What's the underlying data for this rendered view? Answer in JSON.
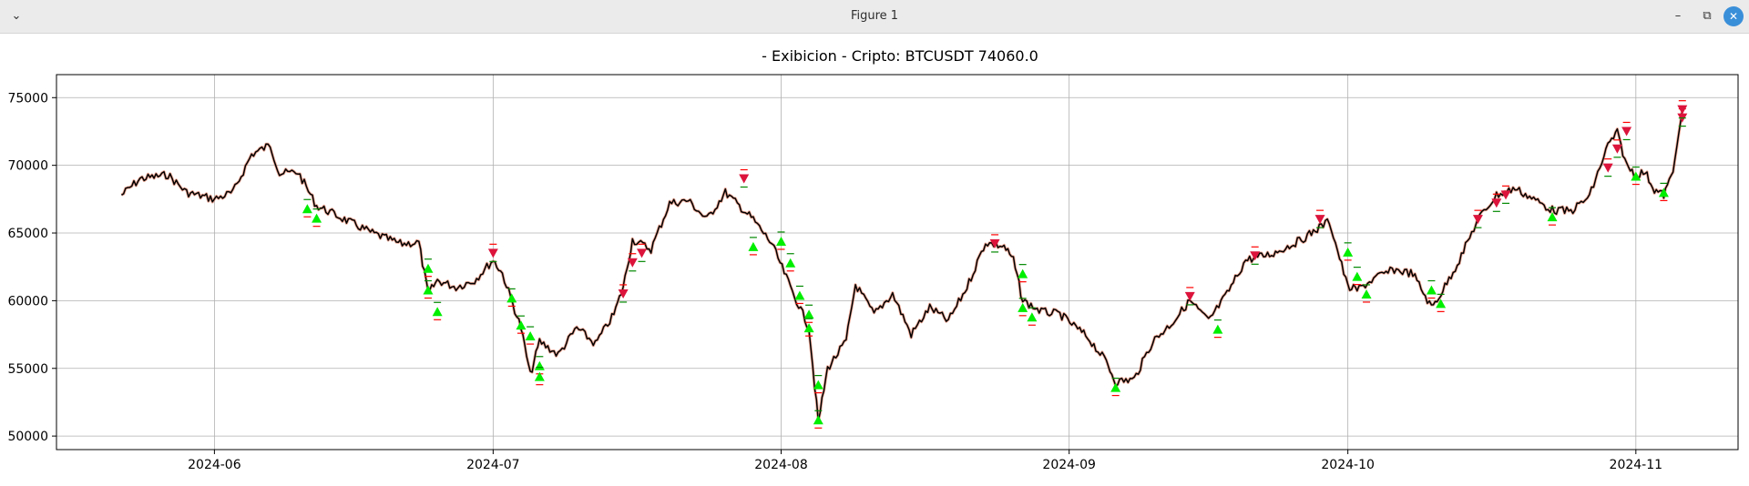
{
  "window": {
    "title": "Figure 1",
    "menu_icon": "chevron-down-icon",
    "minimize_icon": "minimize-icon",
    "maximize_icon": "restore-icon",
    "close_icon": "close-icon",
    "minimize_glyph": "–",
    "maximize_glyph": "⧉",
    "close_glyph": "✕",
    "menu_glyph": "⌄"
  },
  "colors": {
    "price_line": "#000000",
    "price_shadow": "#e06040",
    "buy_marker": "#00ee00",
    "sell_marker": "#dc143c",
    "buy_tick": "#008800",
    "sell_tick": "#ff0000",
    "grid": "#b0b0b0"
  },
  "chart_data": {
    "type": "line",
    "title": "- Exibicion - Cripto: BTCUSDT 74060.0",
    "xlabel": "",
    "ylabel": "",
    "grid": true,
    "x_ticks": [
      "2024-06",
      "2024-07",
      "2024-08",
      "2024-09",
      "2024-10",
      "2024-11"
    ],
    "y_ticks": [
      50000,
      55000,
      60000,
      65000,
      70000,
      75000
    ],
    "xlim": [
      "2024-05-15",
      "2024-11-12"
    ],
    "ylim": [
      49000,
      76700
    ],
    "series": [
      {
        "values_x": [
          "2024-05-22",
          "2024-05-24",
          "2024-05-27",
          "2024-05-29",
          "2024-06-01",
          "2024-06-03",
          "2024-06-05",
          "2024-06-07",
          "2024-06-08",
          "2024-06-10",
          "2024-06-12",
          "2024-06-13",
          "2024-06-15",
          "2024-06-18",
          "2024-06-21",
          "2024-06-23",
          "2024-06-24",
          "2024-06-25",
          "2024-06-27",
          "2024-06-29",
          "2024-07-01",
          "2024-07-02",
          "2024-07-04",
          "2024-07-05",
          "2024-07-06",
          "2024-07-08",
          "2024-07-10",
          "2024-07-12",
          "2024-07-14",
          "2024-07-15",
          "2024-07-16",
          "2024-07-18",
          "2024-07-20",
          "2024-07-22",
          "2024-07-24",
          "2024-07-26",
          "2024-07-29",
          "2024-07-31",
          "2024-08-02",
          "2024-08-04",
          "2024-08-05",
          "2024-08-06",
          "2024-08-08",
          "2024-08-09",
          "2024-08-11",
          "2024-08-13",
          "2024-08-15",
          "2024-08-17",
          "2024-08-19",
          "2024-08-21",
          "2024-08-23",
          "2024-08-25",
          "2024-08-26",
          "2024-08-27",
          "2024-08-29",
          "2024-08-31",
          "2024-09-03",
          "2024-09-05",
          "2024-09-06",
          "2024-09-08",
          "2024-09-10",
          "2024-09-12",
          "2024-09-14",
          "2024-09-16",
          "2024-09-18",
          "2024-09-20",
          "2024-09-23",
          "2024-09-26",
          "2024-09-29",
          "2024-10-01",
          "2024-10-02",
          "2024-10-04",
          "2024-10-06",
          "2024-10-08",
          "2024-10-10",
          "2024-10-11",
          "2024-10-13",
          "2024-10-15",
          "2024-10-17",
          "2024-10-19",
          "2024-10-21",
          "2024-10-23",
          "2024-10-25",
          "2024-10-27",
          "2024-10-29",
          "2024-10-30",
          "2024-10-31",
          "2024-11-01",
          "2024-11-02",
          "2024-11-03",
          "2024-11-04",
          "2024-11-05",
          "2024-11-06"
        ],
        "values_y": [
          67800,
          69000,
          69300,
          68000,
          67500,
          68000,
          70800,
          71500,
          69400,
          69500,
          67000,
          66700,
          66000,
          65000,
          64200,
          64300,
          60500,
          61500,
          61000,
          61500,
          63000,
          62000,
          58000,
          54500,
          57000,
          56000,
          58000,
          56800,
          59000,
          61000,
          64500,
          63800,
          67200,
          67400,
          66000,
          68000,
          66000,
          64200,
          61000,
          58000,
          51000,
          55000,
          57000,
          61200,
          59000,
          60500,
          57500,
          59500,
          58500,
          61000,
          64300,
          64000,
          63000,
          60000,
          59200,
          59000,
          57300,
          55500,
          54000,
          54200,
          57000,
          58300,
          60000,
          58500,
          60500,
          63000,
          63500,
          64500,
          65900,
          61000,
          60800,
          61700,
          62300,
          62000,
          59500,
          60500,
          63000,
          66000,
          67800,
          68300,
          67500,
          66700,
          66600,
          67700,
          71500,
          72400,
          70000,
          69300,
          69500,
          68200,
          67800,
          69500,
          74100
        ]
      }
    ],
    "buy_signals": [
      {
        "x": "2024-06-11",
        "y": 66800
      },
      {
        "x": "2024-06-12",
        "y": 66100
      },
      {
        "x": "2024-06-24",
        "y": 62400
      },
      {
        "x": "2024-06-24",
        "y": 60800
      },
      {
        "x": "2024-06-25",
        "y": 59200
      },
      {
        "x": "2024-07-03",
        "y": 60200
      },
      {
        "x": "2024-07-04",
        "y": 58200
      },
      {
        "x": "2024-07-05",
        "y": 57400
      },
      {
        "x": "2024-07-06",
        "y": 55200
      },
      {
        "x": "2024-07-06",
        "y": 54400
      },
      {
        "x": "2024-07-29",
        "y": 64000
      },
      {
        "x": "2024-08-01",
        "y": 64400
      },
      {
        "x": "2024-08-02",
        "y": 62800
      },
      {
        "x": "2024-08-03",
        "y": 60400
      },
      {
        "x": "2024-08-04",
        "y": 59000
      },
      {
        "x": "2024-08-04",
        "y": 58000
      },
      {
        "x": "2024-08-05",
        "y": 53800
      },
      {
        "x": "2024-08-05",
        "y": 51200
      },
      {
        "x": "2024-08-27",
        "y": 62000
      },
      {
        "x": "2024-08-27",
        "y": 59500
      },
      {
        "x": "2024-08-28",
        "y": 58800
      },
      {
        "x": "2024-09-06",
        "y": 53600
      },
      {
        "x": "2024-09-17",
        "y": 57900
      },
      {
        "x": "2024-10-01",
        "y": 63600
      },
      {
        "x": "2024-10-02",
        "y": 61800
      },
      {
        "x": "2024-10-03",
        "y": 60500
      },
      {
        "x": "2024-10-10",
        "y": 60800
      },
      {
        "x": "2024-10-11",
        "y": 59800
      },
      {
        "x": "2024-10-23",
        "y": 66200
      },
      {
        "x": "2024-11-01",
        "y": 69200
      },
      {
        "x": "2024-11-04",
        "y": 68000
      }
    ],
    "sell_signals": [
      {
        "x": "2024-07-01",
        "y": 63500
      },
      {
        "x": "2024-07-15",
        "y": 60500
      },
      {
        "x": "2024-07-16",
        "y": 62800
      },
      {
        "x": "2024-07-17",
        "y": 63500
      },
      {
        "x": "2024-07-28",
        "y": 69000
      },
      {
        "x": "2024-08-24",
        "y": 64200
      },
      {
        "x": "2024-09-14",
        "y": 60300
      },
      {
        "x": "2024-09-21",
        "y": 63300
      },
      {
        "x": "2024-09-28",
        "y": 66000
      },
      {
        "x": "2024-10-15",
        "y": 66000
      },
      {
        "x": "2024-10-17",
        "y": 67200
      },
      {
        "x": "2024-10-18",
        "y": 67800
      },
      {
        "x": "2024-10-29",
        "y": 69800
      },
      {
        "x": "2024-10-30",
        "y": 71200
      },
      {
        "x": "2024-10-31",
        "y": 72500
      },
      {
        "x": "2024-11-06",
        "y": 73500
      },
      {
        "x": "2024-11-06",
        "y": 74100
      }
    ]
  }
}
